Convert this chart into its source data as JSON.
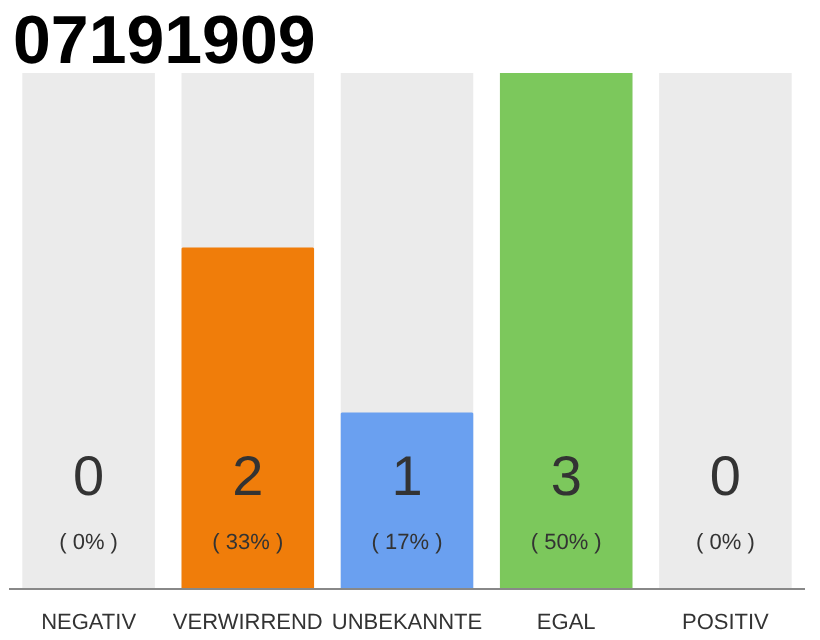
{
  "chart_data": {
    "type": "bar",
    "title": "07191909",
    "categories": [
      "NEGATIV",
      "VERWIRREND",
      "UNBEKANNTE",
      "EGAL",
      "POSITIV"
    ],
    "values": [
      0,
      33,
      17,
      50,
      0
    ],
    "colors": [
      "#d0d0d0",
      "#f07d0a",
      "#6aa0f0",
      "#7cc85c",
      "#d0d0d0"
    ],
    "value_labels": [
      "( 0% )",
      "( 33% )",
      "( 17% )",
      "( 50% )",
      "( 0% )"
    ],
    "annotations": [
      "0",
      "2",
      "1",
      "3",
      "0"
    ],
    "tick_labels": "x"
  }
}
